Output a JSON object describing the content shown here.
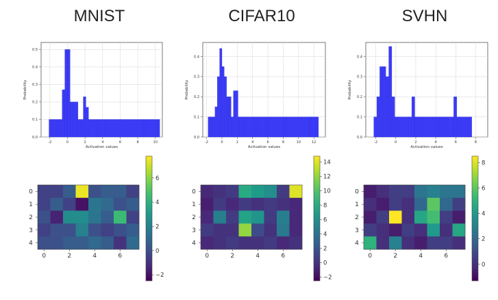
{
  "panels": [
    {
      "title": "MNIST",
      "histogram": {
        "type": "bar",
        "xlabel": "Activation values",
        "ylabel": "Probability",
        "xlim": [
          -3,
          10.8
        ],
        "ylim": [
          0,
          0.54
        ],
        "xticks": [
          -2,
          0,
          2,
          4,
          6,
          8,
          10
        ],
        "yticks": [
          0.0,
          0.1,
          0.2,
          0.3,
          0.4,
          0.5
        ],
        "bin_edges": [
          -2.1,
          -1.8,
          -1.5,
          -1.2,
          -0.9,
          -0.6,
          -0.3,
          0.0,
          0.3,
          0.6,
          1.2,
          1.5,
          1.8,
          2.1,
          2.4,
          3.3,
          3.6,
          4.2,
          4.5,
          8.7,
          9.0,
          10.2,
          10.5
        ],
        "values": [
          0.1,
          0.1,
          0.1,
          0.1,
          0.1,
          0.27,
          0.5,
          0.5,
          0.2,
          0.2,
          0.1,
          0.1,
          0.23,
          0.17,
          0.1,
          0.1,
          0.1,
          0.1,
          0.1,
          0.1,
          0.1,
          0.1
        ]
      },
      "heatmap": {
        "type": "heatmap",
        "rows": 5,
        "cols": 8,
        "xticks": [
          0,
          2,
          4,
          6
        ],
        "yticks": [
          0,
          1,
          2,
          3,
          4
        ],
        "vmin": -2.5,
        "vmax": 7.8,
        "colorbar_ticks": [
          -2,
          0,
          2,
          4,
          6
        ],
        "values": [
          [
            -0.5,
            -0.5,
            0.5,
            7.5,
            0.0,
            0.5,
            0.5,
            -0.5
          ],
          [
            -0.5,
            0.5,
            -0.5,
            -2.0,
            1.5,
            1.0,
            0.0,
            0.5
          ],
          [
            0.0,
            -1.5,
            2.5,
            2.5,
            1.5,
            0.5,
            4.5,
            -0.5
          ],
          [
            -0.5,
            0.0,
            0.0,
            2.0,
            0.0,
            -0.5,
            0.0,
            0.5
          ],
          [
            0.0,
            0.0,
            0.5,
            0.5,
            1.0,
            0.5,
            -1.0,
            1.0
          ]
        ]
      }
    },
    {
      "title": "CIFAR10",
      "histogram": {
        "type": "bar",
        "xlabel": "Activation values",
        "ylabel": "Probability",
        "xlim": [
          -2.5,
          13.5
        ],
        "ylim": [
          0,
          0.47
        ],
        "xticks": [
          -2,
          0,
          2,
          4,
          6,
          8,
          10,
          12
        ],
        "yticks": [
          0.0,
          0.1,
          0.2,
          0.3,
          0.4
        ],
        "bin_edges": [
          -1.8,
          -1.5,
          -1.2,
          -0.9,
          -0.6,
          -0.3,
          0.0,
          0.3,
          0.6,
          0.9,
          1.2,
          1.5,
          2.1,
          2.4,
          2.7,
          3.0,
          4.2,
          4.5,
          4.8,
          5.7,
          6.0,
          8.1,
          8.4,
          11.4,
          11.7,
          12.3,
          12.6
        ],
        "values": [
          0.1,
          0.1,
          0.1,
          0.15,
          0.3,
          0.44,
          0.35,
          0.3,
          0.2,
          0.2,
          0.1,
          0.23,
          0.1,
          0.1,
          0.1,
          0.1,
          0.1,
          0.1,
          0.1,
          0.1,
          0.1,
          0.1,
          0.1,
          0.1,
          0.1,
          0.1
        ]
      },
      "heatmap": {
        "type": "heatmap",
        "rows": 5,
        "cols": 8,
        "xticks": [
          0,
          2,
          4,
          6
        ],
        "yticks": [
          0,
          1,
          2,
          3,
          4
        ],
        "vmin": -2.5,
        "vmax": 14.8,
        "colorbar_ticks": [
          -2,
          0,
          2,
          4,
          6,
          8,
          10,
          12,
          14
        ],
        "values": [
          [
            -0.5,
            0.0,
            0.5,
            8.0,
            7.0,
            6.0,
            0.5,
            14.0
          ],
          [
            -1.0,
            0.5,
            -0.5,
            0.5,
            0.0,
            0.5,
            0.0,
            -0.5
          ],
          [
            -0.5,
            5.0,
            0.5,
            7.5,
            6.5,
            0.5,
            5.0,
            -0.5
          ],
          [
            0.5,
            0.0,
            0.0,
            12.0,
            1.5,
            0.0,
            4.5,
            -0.5
          ],
          [
            -0.5,
            0.0,
            0.5,
            0.0,
            0.0,
            0.5,
            -0.5,
            0.0
          ]
        ]
      }
    },
    {
      "title": "SVHN",
      "histogram": {
        "type": "bar",
        "xlabel": "Activation values",
        "ylabel": "Probability",
        "xlim": [
          -3,
          9.2
        ],
        "ylim": [
          0,
          0.47
        ],
        "xticks": [
          -2,
          0,
          2,
          4,
          6,
          8
        ],
        "yticks": [
          0.0,
          0.1,
          0.2,
          0.3,
          0.4
        ],
        "bin_edges": [
          -2.2,
          -1.9,
          -1.6,
          -1.3,
          -1.0,
          -0.7,
          -0.4,
          -0.1,
          0.2,
          1.3,
          1.6,
          1.9,
          2.2,
          2.5,
          3.7,
          4.0,
          4.3,
          4.6,
          4.9,
          5.8,
          6.1,
          6.4,
          7.3,
          7.6
        ],
        "values": [
          0.1,
          0.2,
          0.35,
          0.35,
          0.3,
          0.45,
          0.2,
          0.1,
          0.1,
          0.1,
          0.2,
          0.1,
          0.1,
          0.1,
          0.1,
          0.1,
          0.1,
          0.1,
          0.1,
          0.2,
          0.1,
          0.1,
          0.1
        ]
      },
      "heatmap": {
        "type": "heatmap",
        "rows": 5,
        "cols": 8,
        "xticks": [
          0,
          2,
          4,
          6
        ],
        "yticks": [
          0,
          1,
          2,
          3,
          4
        ],
        "vmin": -1.3,
        "vmax": 8.5,
        "colorbar_ticks": [
          0,
          2,
          4,
          6,
          8
        ],
        "values": [
          [
            -0.5,
            0.0,
            0.5,
            0.5,
            2.5,
            3.0,
            2.5,
            2.5
          ],
          [
            0.0,
            -0.5,
            0.5,
            0.0,
            2.0,
            6.0,
            2.0,
            0.5
          ],
          [
            -0.5,
            0.5,
            8.5,
            0.0,
            4.5,
            5.5,
            0.5,
            -0.5
          ],
          [
            0.5,
            0.0,
            -0.5,
            0.5,
            0.0,
            4.0,
            0.0,
            4.5
          ],
          [
            5.0,
            0.0,
            3.0,
            0.0,
            -0.5,
            0.5,
            0.5,
            0.0
          ]
        ]
      }
    }
  ]
}
